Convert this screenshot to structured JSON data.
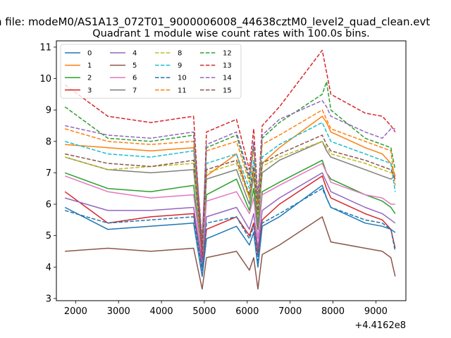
{
  "figure": {
    "suptitle": "n file: modeM0/AS1A13_072T01_9000006008_44638cztM0_level2_quad_clean.evt",
    "title": "Quadrant 1 module wise count rates with 100.0s bins.",
    "x_offset_label": "+4.4162e8"
  },
  "chart_data": {
    "type": "line",
    "title": "Quadrant 1 module wise count rates with 100.0s bins.",
    "xlabel": "",
    "ylabel": "",
    "x_offset_label": "+4.4162e8",
    "xlim": [
      1550,
      9700
    ],
    "ylim": [
      2.93,
      11.2
    ],
    "xticks": [
      2000,
      3000,
      4000,
      5000,
      6000,
      7000,
      8000,
      9000
    ],
    "yticks": [
      3,
      4,
      5,
      6,
      7,
      8,
      9,
      10,
      11
    ],
    "grid": false,
    "legend_placement": "top-left",
    "legend_columns": 4,
    "x": [
      1750,
      2750,
      3750,
      4750,
      4950,
      5050,
      5750,
      6050,
      6150,
      6250,
      6350,
      6750,
      7750,
      7850,
      7950,
      8750,
      9150,
      9350,
      9450
    ],
    "series": [
      {
        "name": "0",
        "color": "#1f77b4",
        "dash": "solid",
        "values": [
          5.9,
          5.2,
          5.3,
          5.4,
          3.7,
          4.9,
          5.3,
          4.7,
          5.1,
          4.0,
          5.3,
          5.6,
          6.6,
          6.2,
          5.9,
          5.4,
          5.3,
          5.2,
          5.1
        ]
      },
      {
        "name": "1",
        "color": "#ff7f0e",
        "dash": "solid",
        "values": [
          7.9,
          7.8,
          7.7,
          7.8,
          4.6,
          6.9,
          7.6,
          6.2,
          7.1,
          5.6,
          7.3,
          7.8,
          8.8,
          8.6,
          8.3,
          7.8,
          7.6,
          7.3,
          6.9
        ]
      },
      {
        "name": "2",
        "color": "#2ca02c",
        "dash": "solid",
        "values": [
          7.0,
          6.5,
          6.4,
          6.6,
          4.2,
          6.3,
          6.8,
          5.8,
          6.5,
          5.2,
          6.4,
          6.7,
          7.4,
          7.0,
          6.8,
          6.3,
          6.1,
          5.9,
          5.7
        ]
      },
      {
        "name": "3",
        "color": "#d62728",
        "dash": "solid",
        "values": [
          6.4,
          5.4,
          5.6,
          5.7,
          4.0,
          5.2,
          5.6,
          5.0,
          5.4,
          4.4,
          5.5,
          6.0,
          6.9,
          6.5,
          6.2,
          5.7,
          5.5,
          5.2,
          4.6
        ]
      },
      {
        "name": "4",
        "color": "#9467bd",
        "dash": "solid",
        "values": [
          6.2,
          5.8,
          5.8,
          5.9,
          4.1,
          5.6,
          5.9,
          5.2,
          5.7,
          4.6,
          5.8,
          6.2,
          7.0,
          6.7,
          6.4,
          5.9,
          5.7,
          5.5,
          5.4
        ]
      },
      {
        "name": "5",
        "color": "#8c564b",
        "dash": "solid",
        "values": [
          4.5,
          4.6,
          4.5,
          4.6,
          3.3,
          4.3,
          4.5,
          3.9,
          4.3,
          3.3,
          4.4,
          4.7,
          5.6,
          5.2,
          4.8,
          4.6,
          4.5,
          4.3,
          3.7
        ]
      },
      {
        "name": "6",
        "color": "#e377c2",
        "dash": "solid",
        "values": [
          6.9,
          6.4,
          6.2,
          6.3,
          4.3,
          6.1,
          6.4,
          5.7,
          6.2,
          4.9,
          6.3,
          6.6,
          7.3,
          7.0,
          6.7,
          6.3,
          6.2,
          6.0,
          6.0
        ]
      },
      {
        "name": "7",
        "color": "#7f7f7f",
        "dash": "solid",
        "values": [
          7.5,
          7.1,
          7.0,
          7.1,
          4.4,
          6.8,
          7.1,
          6.0,
          6.9,
          5.4,
          7.0,
          7.4,
          8.0,
          7.7,
          7.5,
          7.1,
          6.9,
          6.8,
          6.9
        ]
      },
      {
        "name": "8",
        "color": "#bcbd22",
        "dash": "dashed",
        "values": [
          7.5,
          7.1,
          7.2,
          7.3,
          4.5,
          7.0,
          7.3,
          6.2,
          7.1,
          5.6,
          7.2,
          7.5,
          8.0,
          7.8,
          7.6,
          7.3,
          7.1,
          7.0,
          7.0
        ]
      },
      {
        "name": "9",
        "color": "#17becf",
        "dash": "dashed",
        "values": [
          8.0,
          7.6,
          7.5,
          7.7,
          4.7,
          7.3,
          7.6,
          6.5,
          7.4,
          5.8,
          7.5,
          7.9,
          8.6,
          8.3,
          8.0,
          7.6,
          7.4,
          7.3,
          6.4
        ]
      },
      {
        "name": "10",
        "color": "#1f77b4",
        "dash": "dashed",
        "values": [
          5.8,
          5.4,
          5.5,
          5.6,
          3.9,
          5.4,
          5.6,
          4.9,
          5.3,
          4.2,
          5.4,
          5.7,
          6.5,
          6.2,
          5.9,
          5.5,
          5.4,
          5.2,
          4.5
        ]
      },
      {
        "name": "11",
        "color": "#ff7f0e",
        "dash": "dashed",
        "values": [
          8.4,
          8.0,
          7.9,
          8.0,
          4.8,
          7.7,
          8.0,
          6.7,
          7.8,
          6.0,
          7.9,
          8.2,
          9.0,
          8.7,
          8.4,
          8.0,
          7.8,
          7.7,
          6.6
        ]
      },
      {
        "name": "12",
        "color": "#2ca02c",
        "dash": "dashed",
        "values": [
          9.1,
          8.1,
          8.0,
          8.2,
          4.8,
          7.8,
          8.2,
          6.8,
          7.9,
          6.1,
          8.1,
          8.6,
          9.5,
          9.9,
          9.0,
          8.1,
          7.9,
          7.8,
          7.1
        ]
      },
      {
        "name": "13",
        "color": "#d62728",
        "dash": "dashed",
        "values": [
          9.8,
          8.8,
          8.6,
          8.8,
          4.3,
          8.3,
          8.7,
          7.1,
          8.4,
          6.2,
          8.5,
          9.1,
          10.9,
          10.2,
          9.5,
          8.9,
          8.8,
          8.5,
          8.3
        ]
      },
      {
        "name": "14",
        "color": "#9467bd",
        "dash": "dashed",
        "values": [
          8.5,
          8.2,
          8.1,
          8.3,
          4.9,
          7.9,
          8.3,
          6.9,
          8.0,
          6.2,
          8.2,
          8.7,
          9.3,
          9.1,
          8.8,
          8.3,
          8.1,
          8.4,
          8.4
        ]
      },
      {
        "name": "15",
        "color": "#8c564b",
        "dash": "dashed",
        "values": [
          7.6,
          7.3,
          7.2,
          7.4,
          4.6,
          7.1,
          7.4,
          6.3,
          7.2,
          5.7,
          7.3,
          7.6,
          8.2,
          7.9,
          7.7,
          7.4,
          7.2,
          7.1,
          6.8
        ]
      }
    ]
  }
}
